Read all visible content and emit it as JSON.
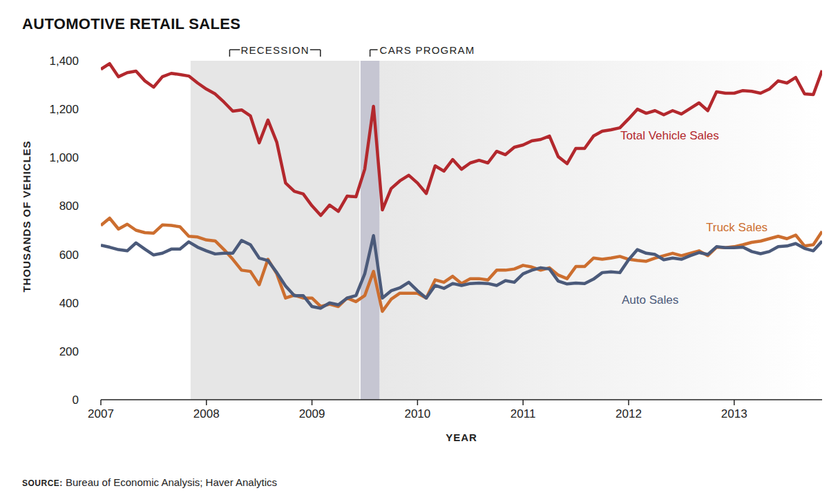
{
  "chart_data": {
    "type": "line",
    "title": "AUTOMOTIVE RETAIL SALES",
    "source_label": "SOURCE:",
    "source": "Bureau of Economic Analysis; Haver Analytics",
    "x_label": "YEAR",
    "y_label": "THOUSANDS OF VEHICLES",
    "x": [
      2007,
      2007.083,
      2007.167,
      2007.25,
      2007.333,
      2007.417,
      2007.5,
      2007.583,
      2007.667,
      2007.75,
      2007.833,
      2007.917,
      2008,
      2008.083,
      2008.167,
      2008.25,
      2008.333,
      2008.417,
      2008.5,
      2008.583,
      2008.667,
      2008.75,
      2008.833,
      2008.917,
      2009,
      2009.083,
      2009.167,
      2009.25,
      2009.333,
      2009.417,
      2009.5,
      2009.583,
      2009.667,
      2009.75,
      2009.833,
      2009.917,
      2010,
      2010.083,
      2010.167,
      2010.25,
      2010.333,
      2010.417,
      2010.5,
      2010.583,
      2010.667,
      2010.75,
      2010.833,
      2010.917,
      2011,
      2011.083,
      2011.167,
      2011.25,
      2011.333,
      2011.417,
      2011.5,
      2011.583,
      2011.667,
      2011.75,
      2011.833,
      2011.917,
      2012,
      2012.083,
      2012.167,
      2012.25,
      2012.333,
      2012.417,
      2012.5,
      2012.583,
      2012.667,
      2012.75,
      2012.833,
      2012.917,
      2013,
      2013.083,
      2013.167,
      2013.25,
      2013.333,
      2013.417,
      2013.5,
      2013.583,
      2013.667,
      2013.75,
      2013.833
    ],
    "series": [
      {
        "name": "Total Vehicle Sales",
        "color": "#b3282d",
        "values": [
          1365,
          1388,
          1334,
          1351,
          1357,
          1317,
          1291,
          1334,
          1348,
          1343,
          1337,
          1308,
          1283,
          1263,
          1229,
          1192,
          1197,
          1172,
          1061,
          1155,
          1063,
          895,
          861,
          850,
          801,
          761,
          804,
          778,
          841,
          838,
          952,
          1212,
          784,
          872,
          904,
          927,
          895,
          852,
          966,
          944,
          992,
          952,
          978,
          989,
          978,
          1026,
          1012,
          1043,
          1052,
          1069,
          1075,
          1089,
          1004,
          975,
          1038,
          1038,
          1089,
          1109,
          1115,
          1123,
          1160,
          1200,
          1183,
          1194,
          1177,
          1194,
          1180,
          1203,
          1226,
          1194,
          1272,
          1266,
          1266,
          1277,
          1274,
          1266,
          1283,
          1317,
          1308,
          1331,
          1263,
          1260,
          1360
        ]
      },
      {
        "name": "Truck Sales",
        "color": "#cc6e2f",
        "values": [
          720,
          750,
          705,
          725,
          700,
          690,
          688,
          722,
          720,
          714,
          675,
          672,
          660,
          656,
          620,
          580,
          535,
          530,
          475,
          580,
          520,
          420,
          432,
          420,
          420,
          385,
          395,
          385,
          420,
          405,
          430,
          530,
          365,
          415,
          440,
          440,
          440,
          420,
          495,
          485,
          510,
          480,
          500,
          500,
          495,
          535,
          535,
          540,
          555,
          548,
          535,
          545,
          515,
          500,
          550,
          550,
          585,
          580,
          585,
          592,
          580,
          575,
          572,
          585,
          595,
          605,
          595,
          605,
          615,
          595,
          630,
          628,
          632,
          640,
          650,
          655,
          665,
          675,
          665,
          680,
          635,
          640,
          695
        ]
      },
      {
        "name": "Auto Sales",
        "color": "#4b5a7a",
        "values": [
          638,
          630,
          620,
          615,
          648,
          622,
          598,
          605,
          622,
          622,
          652,
          630,
          615,
          602,
          605,
          605,
          658,
          640,
          585,
          575,
          525,
          470,
          430,
          430,
          385,
          378,
          400,
          392,
          420,
          430,
          520,
          678,
          420,
          450,
          462,
          485,
          450,
          420,
          472,
          460,
          480,
          472,
          480,
          482,
          480,
          472,
          492,
          485,
          520,
          535,
          545,
          540,
          490,
          478,
          482,
          480,
          498,
          525,
          528,
          525,
          578,
          620,
          605,
          600,
          578,
          585,
          580,
          595,
          608,
          600,
          632,
          628,
          628,
          630,
          612,
          603,
          612,
          632,
          635,
          645,
          625,
          615,
          655
        ]
      }
    ],
    "xlim": [
      2007,
      2013.833
    ],
    "xticks": [
      2007,
      2008,
      2009,
      2010,
      2011,
      2012,
      2013
    ],
    "ylim": [
      0,
      1400
    ],
    "yticks": [
      0,
      200,
      400,
      600,
      800,
      {
        "value": 1000,
        "label": "1,000"
      },
      {
        "value": 1200,
        "label": "1,200"
      },
      {
        "value": 1400,
        "label": "1,400"
      }
    ],
    "grid": false,
    "annotations": [
      {
        "text": "RECESSION",
        "x0": 2007.85,
        "x1": 2009.45,
        "color": "#e6e6e6"
      },
      {
        "text": "CARS PROGRAM",
        "x0": 2009.46,
        "x1": 2009.64,
        "color": "#c6c6d2"
      }
    ]
  }
}
